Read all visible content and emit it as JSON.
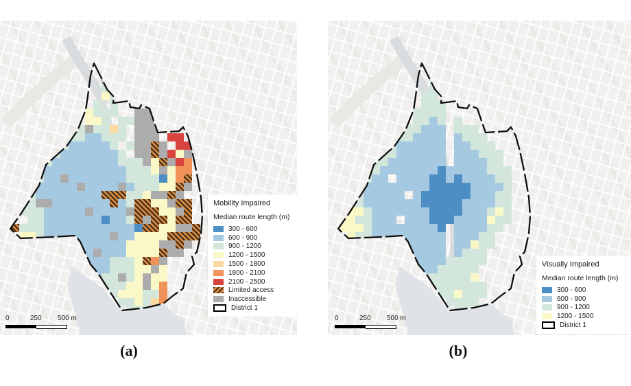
{
  "figure": {
    "captions": {
      "a": "(a)",
      "b": "(b)"
    }
  },
  "scalebar": {
    "labels": [
      "0",
      "250",
      "500 m"
    ]
  },
  "chart_data": [
    {
      "type": "heatmap",
      "panel": "a",
      "title": "Mobility Impaired",
      "legend_title": "Median route length (m)",
      "legend_position": "bottom-right",
      "classes": [
        {
          "code": "1",
          "label": "300 - 600",
          "color": "#4d8fc4"
        },
        {
          "code": "2",
          "label": "600 - 900",
          "color": "#a6c9e2"
        },
        {
          "code": "3",
          "label": "900 - 1200",
          "color": "#d2e6dc"
        },
        {
          "code": "4",
          "label": "1200 - 1500",
          "color": "#f9f8c6"
        },
        {
          "code": "5",
          "label": "1500 - 1800",
          "color": "#fcd9a0"
        },
        {
          "code": "6",
          "label": "1800 - 2100",
          "color": "#f09259"
        },
        {
          "code": "7",
          "label": "2100 - 2500",
          "color": "#d9453e"
        },
        {
          "code": "L",
          "label": "Limited access",
          "color": "#d08743",
          "hatched": true
        },
        {
          "code": "X",
          "label": "Inaccessible",
          "color": "#acacac"
        },
        {
          "code": "D",
          "label": "District 1",
          "outline": true
        }
      ],
      "grid": [
        "........................",
        "........................",
        "...........X............",
        "...........3............",
        "...........43...........",
        "..........3.3...........",
        ".........4333..XX.......",
        ".........443.33XXX......",
        "........3X3353.XXX......",
        ".......3322333.XXX.77...",
        "......3222223.3XXLX.77..",
        ".....322222223.XXLX74X..",
        "....322222222333X4LX76..",
        "...322222222223334X466..",
        "..3322X22222223333146L..",
        "..322222X2222X233344LX..",
        ".3322222222LLL334XXLX...",
        ".33XX2222222L23LL44XLL..",
        ".33322222X2222XLLL44XL..",
        "..3322222221223LXLL4LL..",
        "L333222222222221LL44XXL.",
        ".44322222222X224444LLLL.",
        "X..332222222224444XXLX..",
        "....332222X2224444LXX...",
        ".....32222223334L6X.....",
        "......322X2233344X4.....",
        "........32233X34X44.....",
        "..........333344X46.....",
        "............3444336.....",
        ".............334356.....",
        "..............333......."
      ]
    },
    {
      "type": "heatmap",
      "panel": "b",
      "title": "Visually Impaired",
      "legend_title": "Median route length (m)",
      "legend_position": "bottom-right",
      "classes": [
        {
          "code": "1",
          "label": "300 - 600",
          "color": "#4d8fc4"
        },
        {
          "code": "2",
          "label": "600 - 900",
          "color": "#a6c9e2"
        },
        {
          "code": "3",
          "label": "900 - 1200",
          "color": "#d2e6dc"
        },
        {
          "code": "4",
          "label": "1200 - 1500",
          "color": "#f9f8c6"
        },
        {
          "code": "D",
          "label": "District 1",
          "outline": true
        }
      ],
      "grid": [
        "........................",
        "........................",
        "...........3............",
        "...........33...........",
        "..........33............",
        "..........333...........",
        ".........3333...........",
        ".........3323.3.........",
        "........33222.333.......",
        ".......332222.2333......",
        "......3222222.22333.....",
        ".....33222222.222333....",
        "....332222222.222233....",
        "...332222222122222333...",
        "..3322.22221121222233...",
        "..3222222221111122223...",
        ".3322222.211111122233...",
        ".43222222211111222233...",
        ".44322222221111222343...",
        "4433222.2221112222433...",
        "4443222222221.222233....",
        ".433222222222.22233.....",
        "...3322222222.22433.....",
        "....332222222.2333......",
        ".....3322222233333......",
        ".......3322233333.......",
        ".........33333334.......",
        "...........3333333......",
        "............334333......",
        ".............3333.......",
        "..............33........"
      ]
    }
  ]
}
